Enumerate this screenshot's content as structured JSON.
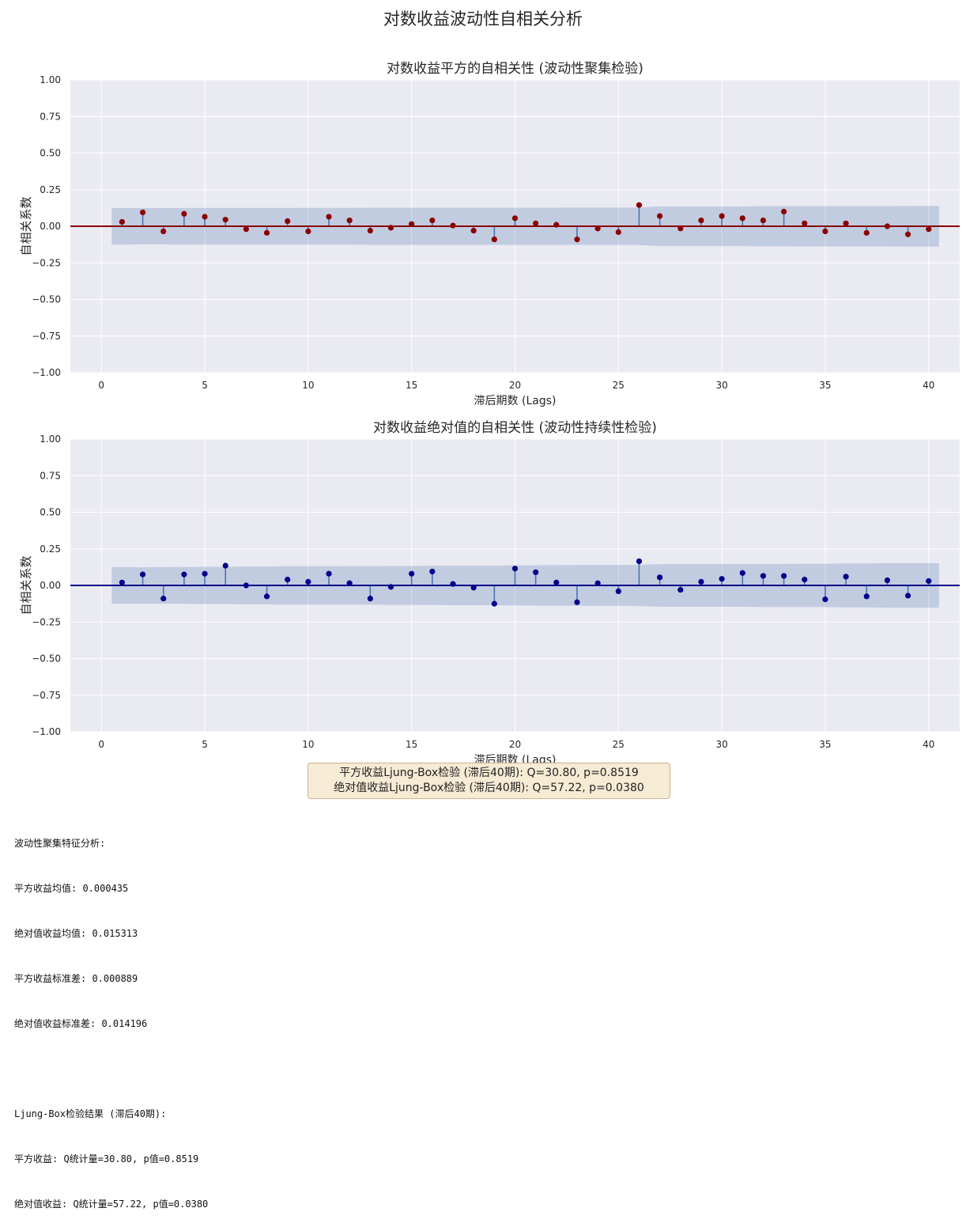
{
  "page_title": "对数收益波动性自相关分析",
  "chart_data": [
    {
      "type": "stem",
      "title": "对数收益平方的自相关性 (波动性聚集检验)",
      "xlabel": "滞后期数 (Lags)",
      "ylabel": "自相关系数",
      "xlim": [
        -1.5,
        41.5
      ],
      "ylim": [
        -1.0,
        1.0
      ],
      "xticks": [
        0,
        5,
        10,
        15,
        20,
        25,
        30,
        35,
        40
      ],
      "yticks": [
        1.0,
        0.75,
        0.5,
        0.25,
        0.0,
        -0.25,
        -0.5,
        -0.75,
        -1.0
      ],
      "ytick_labels": [
        "1.00",
        "0.75",
        "0.50",
        "0.25",
        "0.00",
        "−0.25",
        "−0.50",
        "−0.75",
        "−1.00"
      ],
      "grid": true,
      "marker_color": "#8b0000",
      "zero_line_color": "#8b0000",
      "lags": [
        1,
        2,
        3,
        4,
        5,
        6,
        7,
        8,
        9,
        10,
        11,
        12,
        13,
        14,
        15,
        16,
        17,
        18,
        19,
        20,
        21,
        22,
        23,
        24,
        25,
        26,
        27,
        28,
        29,
        30,
        31,
        32,
        33,
        34,
        35,
        36,
        37,
        38,
        39,
        40
      ],
      "values": [
        0.03,
        0.095,
        -0.035,
        0.085,
        0.065,
        0.045,
        -0.02,
        -0.045,
        0.035,
        -0.035,
        0.065,
        0.04,
        -0.03,
        -0.01,
        0.015,
        0.04,
        0.005,
        -0.03,
        -0.09,
        0.055,
        0.02,
        0.01,
        -0.09,
        -0.015,
        -0.04,
        0.145,
        0.07,
        -0.015,
        0.04,
        0.07,
        0.055,
        0.04,
        0.1,
        0.02,
        -0.035,
        0.02,
        -0.045,
        0.0,
        -0.055,
        -0.02
      ],
      "conf_upper": [
        0.125,
        0.124,
        0.124,
        0.125,
        0.125,
        0.125,
        0.125,
        0.125,
        0.125,
        0.126,
        0.126,
        0.126,
        0.127,
        0.127,
        0.127,
        0.127,
        0.127,
        0.127,
        0.127,
        0.127,
        0.127,
        0.127,
        0.128,
        0.128,
        0.128,
        0.128,
        0.136,
        0.136,
        0.136,
        0.136,
        0.136,
        0.137,
        0.137,
        0.138,
        0.138,
        0.138,
        0.138,
        0.138,
        0.139,
        0.139
      ]
    },
    {
      "type": "stem",
      "title": "对数收益绝对值的自相关性 (波动性持续性检验)",
      "xlabel": "滞后期数 (Lags)",
      "ylabel": "自相关系数",
      "xlim": [
        -1.5,
        41.5
      ],
      "ylim": [
        -1.0,
        1.0
      ],
      "xticks": [
        0,
        5,
        10,
        15,
        20,
        25,
        30,
        35,
        40
      ],
      "yticks": [
        1.0,
        0.75,
        0.5,
        0.25,
        0.0,
        -0.25,
        -0.5,
        -0.75,
        -1.0
      ],
      "ytick_labels": [
        "1.00",
        "0.75",
        "0.50",
        "0.25",
        "0.00",
        "−0.25",
        "−0.50",
        "−0.75",
        "−1.00"
      ],
      "grid": true,
      "marker_color": "#00008b",
      "zero_line_color": "#00008b",
      "lags": [
        1,
        2,
        3,
        4,
        5,
        6,
        7,
        8,
        9,
        10,
        11,
        12,
        13,
        14,
        15,
        16,
        17,
        18,
        19,
        20,
        21,
        22,
        23,
        24,
        25,
        26,
        27,
        28,
        29,
        30,
        31,
        32,
        33,
        34,
        35,
        36,
        37,
        38,
        39,
        40
      ],
      "values": [
        0.02,
        0.075,
        -0.09,
        0.075,
        0.08,
        0.135,
        0.0,
        -0.075,
        0.04,
        0.025,
        0.08,
        0.015,
        -0.09,
        -0.01,
        0.08,
        0.095,
        0.01,
        -0.015,
        -0.125,
        0.115,
        0.09,
        0.02,
        -0.115,
        0.015,
        -0.04,
        0.165,
        0.055,
        -0.03,
        0.025,
        0.045,
        0.085,
        0.065,
        0.065,
        0.04,
        -0.095,
        0.06,
        -0.075,
        0.035,
        -0.07,
        0.03
      ],
      "conf_upper": [
        0.125,
        0.124,
        0.125,
        0.126,
        0.127,
        0.127,
        0.13,
        0.13,
        0.131,
        0.131,
        0.131,
        0.132,
        0.132,
        0.133,
        0.133,
        0.134,
        0.135,
        0.135,
        0.135,
        0.137,
        0.138,
        0.139,
        0.139,
        0.14,
        0.14,
        0.141,
        0.145,
        0.146,
        0.146,
        0.146,
        0.146,
        0.147,
        0.147,
        0.148,
        0.148,
        0.15,
        0.151,
        0.152,
        0.152,
        0.152
      ]
    }
  ],
  "stats_box": {
    "line1": "平方收益Ljung-Box检验 (滞后40期): Q=30.80, p=0.8519",
    "line2": "绝对值收益Ljung-Box检验 (滞后40期): Q=57.22, p=0.0380"
  },
  "console_output": {
    "lines": [
      "波动性聚集特征分析:",
      "平方收益均值: 0.000435",
      "绝对值收益均值: 0.015313",
      "平方收益标准差: 0.000889",
      "绝对值收益标准差: 0.014196",
      "",
      "Ljung-Box检验结果 (滞后40期):",
      "平方收益: Q统计量=30.80, p值=0.8519",
      "绝对值收益: Q统计量=57.22, p值=0.0380"
    ]
  }
}
